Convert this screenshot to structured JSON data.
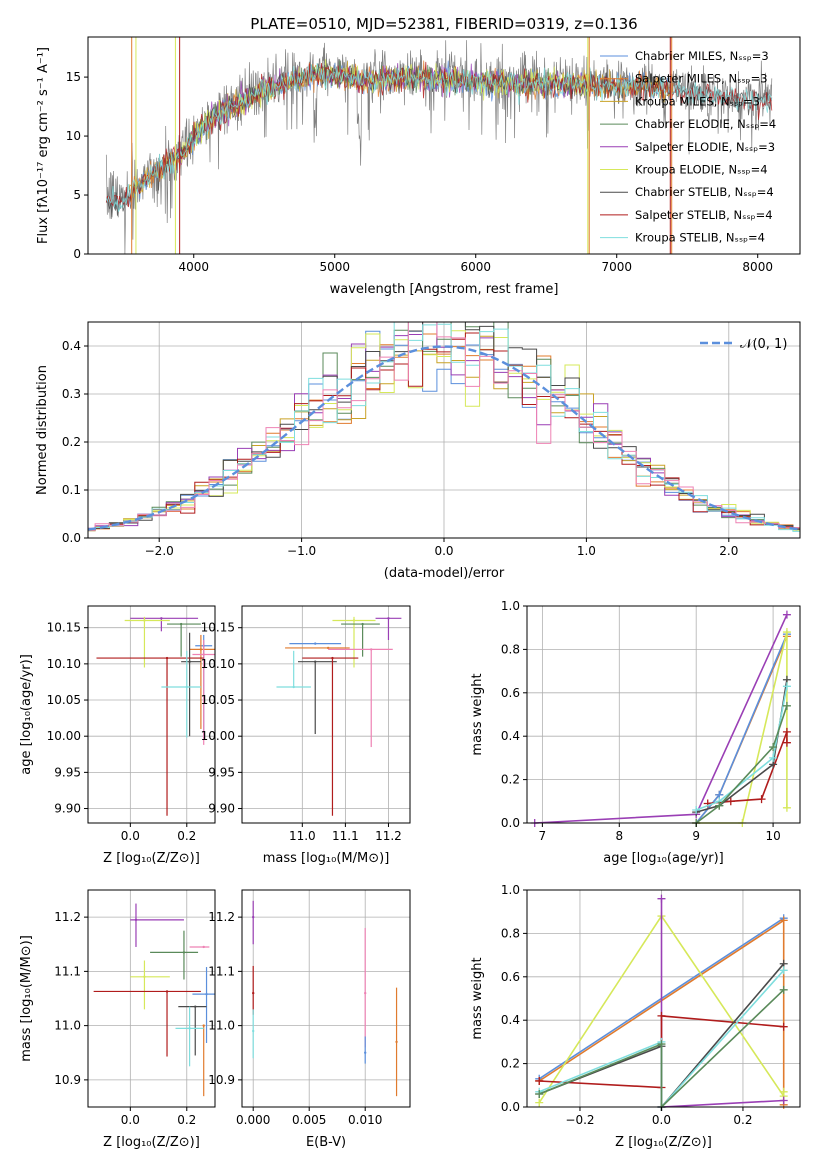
{
  "colors": {
    "chabrier_miles": "#5b8fdc",
    "salpeter_miles": "#e07b2e",
    "kroupa_miles": "#c9a227",
    "chabrier_elodie": "#5a8a5a",
    "salpeter_elodie": "#9a3fb5",
    "kroupa_elodie": "#d6e85a",
    "chabrier_stelib": "#4a4a4a",
    "salpeter_stelib": "#b01c1c",
    "kroupa_stelib": "#7fdede",
    "gray": "#808080",
    "pink": "#ee82b4",
    "normal": "#5b8fdc"
  },
  "chart_data": [
    {
      "type": "line",
      "panel": "spectrum",
      "title": "PLATE=0510, MJD=52381, FIBERID=0319, z=0.136",
      "xlabel": "wavelength [Angstrom, rest frame]",
      "ylabel": "Flux [fλ10⁻¹⁷ erg cm⁻² s⁻¹ A⁻¹]",
      "xlim": [
        3250,
        8300
      ],
      "ylim": [
        0,
        18.4
      ],
      "xticks": [
        4000,
        5000,
        6000,
        7000,
        8000
      ],
      "yticks": [
        0,
        5,
        10,
        15
      ],
      "legend_position": "top-right",
      "legend": [
        {
          "name": "Chabrier MILES, Nₛₛₚ=3",
          "color_key": "chabrier_miles"
        },
        {
          "name": "Salpeter MILES, Nₛₛₚ=3",
          "color_key": "salpeter_miles"
        },
        {
          "name": "Kroupa MILES, Nₛₛₚ=3",
          "color_key": "kroupa_miles"
        },
        {
          "name": "Chabrier ELODIE, Nₛₛₚ=4",
          "color_key": "chabrier_elodie"
        },
        {
          "name": "Salpeter ELODIE, Nₛₛₚ=3",
          "color_key": "salpeter_elodie"
        },
        {
          "name": "Kroupa ELODIE, Nₛₛₚ=4",
          "color_key": "kroupa_elodie"
        },
        {
          "name": "Chabrier STELIB, Nₛₛₚ=4",
          "color_key": "chabrier_stelib"
        },
        {
          "name": "Salpeter STELIB, Nₛₛₚ=4",
          "color_key": "salpeter_stelib"
        },
        {
          "name": "Kroupa STELIB, Nₛₛₚ=4",
          "color_key": "kroupa_stelib"
        }
      ],
      "continuum": {
        "x": [
          3380,
          3500,
          3600,
          3700,
          3800,
          3900,
          4000,
          4100,
          4200,
          4300,
          4400,
          4500,
          4600,
          4700,
          4800,
          4900,
          5000,
          5200,
          5400,
          5600,
          5800,
          6000,
          6200,
          6400,
          6600,
          6800,
          7000,
          7200,
          7400,
          7600,
          7800,
          8000,
          8100
        ],
        "y": [
          4.8,
          4.8,
          6.0,
          7.0,
          7.8,
          8.5,
          10.2,
          11.5,
          12.5,
          13.0,
          13.5,
          14.2,
          14.6,
          15.0,
          15.2,
          15.6,
          15.4,
          15.0,
          15.2,
          15.3,
          15.1,
          14.9,
          14.8,
          14.7,
          14.8,
          14.6,
          14.5,
          14.6,
          14.2,
          13.8,
          13.5,
          13.3,
          13.3
        ]
      },
      "vertical_lines": [
        {
          "x": 3560,
          "color_key": "salpeter_miles"
        },
        {
          "x": 3590,
          "color_key": "kroupa_elodie"
        },
        {
          "x": 3870,
          "color_key": "kroupa_elodie"
        },
        {
          "x": 3900,
          "color_key": "salpeter_stelib"
        },
        {
          "x": 6795,
          "color_key": "kroupa_elodie"
        },
        {
          "x": 6805,
          "color_key": "salpeter_miles"
        },
        {
          "x": 7380,
          "color_key": "salpeter_stelib"
        },
        {
          "x": 7390,
          "color_key": "salpeter_miles"
        }
      ]
    },
    {
      "type": "histogram",
      "panel": "residuals",
      "xlabel": "(data-model)/error",
      "ylabel": "Normed distribution",
      "xlim": [
        -2.5,
        2.5
      ],
      "ylim": [
        0,
        0.45
      ],
      "xticks": [
        -2,
        -1,
        0,
        1,
        2
      ],
      "yticks": [
        0.0,
        0.1,
        0.2,
        0.3,
        0.4
      ],
      "grid": true,
      "legend_position": "top-right",
      "legend": [
        {
          "name": "𝒩(0, 1)",
          "color_key": "normal"
        }
      ],
      "bin_width": 0.1
    },
    {
      "type": "errorbar",
      "panel": "age-vs-Z",
      "xlabel": "Z [log₁₀(Z/Z⊙)]",
      "ylabel": "age  [log₁₀(age/yr)]",
      "xlim": [
        -0.15,
        0.3
      ],
      "ylim": [
        9.88,
        10.18
      ],
      "xticks": [
        0.0,
        0.2
      ],
      "yticks": [
        9.9,
        9.95,
        10.0,
        10.05,
        10.1,
        10.15
      ],
      "points": [
        {
          "color_key": "salpeter_elodie",
          "x": 0.11,
          "xerr": [
            0.11,
            0.13
          ],
          "y": 10.163,
          "yerr": [
            0.018,
            0.0
          ]
        },
        {
          "color_key": "kroupa_elodie",
          "x": 0.05,
          "xerr": [
            0.07,
            0.09
          ],
          "y": 10.16,
          "yerr": [
            0.065,
            0.005
          ]
        },
        {
          "color_key": "chabrier_elodie",
          "x": 0.18,
          "xerr": [
            0.05,
            0.07
          ],
          "y": 10.155,
          "yerr": [
            0.045,
            0.0
          ]
        },
        {
          "color_key": "chabrier_miles",
          "x": 0.26,
          "xerr": [
            0.03,
            0.03
          ],
          "y": 10.125,
          "yerr": [
            0.13,
            0.015
          ]
        },
        {
          "color_key": "salpeter_miles",
          "x": 0.25,
          "xerr": [
            0.04,
            0.05
          ],
          "y": 10.12,
          "yerr": [
            0.11,
            0.02
          ]
        },
        {
          "color_key": "pink",
          "x": 0.26,
          "xerr": [
            0.04,
            0.04
          ],
          "y": 10.113,
          "yerr": [
            0.125,
            0.02
          ]
        },
        {
          "color_key": "chabrier_stelib",
          "x": 0.21,
          "xerr": [
            0.03,
            0.04
          ],
          "y": 10.103,
          "yerr": [
            0.103,
            0.04
          ]
        },
        {
          "color_key": "salpeter_stelib",
          "x": 0.13,
          "xerr": [
            0.25,
            0.13
          ],
          "y": 10.108,
          "yerr": [
            0.218,
            0.0
          ]
        },
        {
          "color_key": "kroupa_stelib",
          "x": 0.2,
          "xerr": [
            0.09,
            0.05
          ],
          "y": 10.068,
          "yerr": [
            0.07,
            0.05
          ]
        }
      ]
    },
    {
      "type": "errorbar",
      "panel": "age-vs-mass",
      "xlabel": "mass [log₁₀(M/M⊙)]",
      "ylabel": "",
      "xlim": [
        10.86,
        11.25
      ],
      "ylim": [
        9.88,
        10.18
      ],
      "xticks": [
        11.0,
        11.1,
        11.2
      ],
      "yticks": [
        9.9,
        9.95,
        10.0,
        10.05,
        10.1,
        10.15
      ],
      "points": [
        {
          "color_key": "salpeter_elodie",
          "x": 11.2,
          "xerr": [
            0.03,
            0.03
          ],
          "y": 10.163,
          "yerr": [
            0.03,
            0.0
          ]
        },
        {
          "color_key": "kroupa_elodie",
          "x": 11.12,
          "xerr": [
            0.05,
            0.05
          ],
          "y": 10.16,
          "yerr": [
            0.065,
            0.005
          ]
        },
        {
          "color_key": "chabrier_elodie",
          "x": 11.14,
          "xerr": [
            0.05,
            0.04
          ],
          "y": 10.155,
          "yerr": [
            0.045,
            0.0
          ]
        },
        {
          "color_key": "chabrier_miles",
          "x": 11.03,
          "xerr": [
            0.06,
            0.06
          ],
          "y": 10.128,
          "yerr": [
            0.0,
            0.0
          ]
        },
        {
          "color_key": "salpeter_miles",
          "x": 11.06,
          "xerr": [
            0.1,
            0.05
          ],
          "y": 10.122,
          "yerr": [
            0.0,
            0.0
          ]
        },
        {
          "color_key": "pink",
          "x": 11.16,
          "xerr": [
            0.1,
            0.05
          ],
          "y": 10.12,
          "yerr": [
            0.135,
            0.0
          ]
        },
        {
          "color_key": "chabrier_stelib",
          "x": 11.03,
          "xerr": [
            0.04,
            0.05
          ],
          "y": 10.103,
          "yerr": [
            0.1,
            0.0
          ]
        },
        {
          "color_key": "salpeter_stelib",
          "x": 11.07,
          "xerr": [
            0.07,
            0.06
          ],
          "y": 10.108,
          "yerr": [
            0.218,
            0.0
          ]
        },
        {
          "color_key": "kroupa_stelib",
          "x": 10.98,
          "xerr": [
            0.04,
            0.04
          ],
          "y": 10.068,
          "yerr": [
            0.0,
            0.05
          ]
        }
      ]
    },
    {
      "type": "line",
      "panel": "mass-weight-vs-age",
      "xlabel": "age  [log₁₀(age/yr)]",
      "ylabel": "mass weight",
      "xlim": [
        6.8,
        10.35
      ],
      "ylim": [
        0,
        1.0
      ],
      "xticks": [
        7,
        8,
        9,
        10
      ],
      "yticks": [
        0.0,
        0.2,
        0.4,
        0.6,
        0.8,
        1.0
      ],
      "grid": true,
      "series": [
        {
          "color_key": "salpeter_elodie",
          "x": [
            6.9,
            9.0,
            10.18
          ],
          "y": [
            0.0,
            0.04,
            0.96
          ]
        },
        {
          "color_key": "salpeter_miles",
          "x": [
            9.0,
            9.3,
            10.18
          ],
          "y": [
            0.0,
            0.13,
            0.86
          ]
        },
        {
          "color_key": "chabrier_miles",
          "x": [
            9.0,
            9.3,
            10.18
          ],
          "y": [
            0.0,
            0.13,
            0.87
          ]
        },
        {
          "color_key": "kroupa_elodie",
          "x": [
            9.0,
            9.6,
            10.18,
            10.18
          ],
          "y": [
            0.0,
            0.0,
            0.88,
            0.07
          ]
        },
        {
          "color_key": "salpeter_stelib",
          "x": [
            9.15,
            9.45,
            9.85,
            10.18,
            10.18
          ],
          "y": [
            0.09,
            0.1,
            0.11,
            0.42,
            0.37
          ]
        },
        {
          "color_key": "chabrier_stelib",
          "x": [
            9.0,
            9.3,
            10.0,
            10.18
          ],
          "y": [
            0.05,
            0.08,
            0.27,
            0.66
          ]
        },
        {
          "color_key": "kroupa_stelib",
          "x": [
            9.0,
            9.3,
            10.0,
            10.18
          ],
          "y": [
            0.06,
            0.1,
            0.3,
            0.63
          ]
        },
        {
          "color_key": "chabrier_elodie",
          "x": [
            9.0,
            9.3,
            10.0,
            10.18
          ],
          "y": [
            0.0,
            0.08,
            0.35,
            0.54
          ]
        }
      ]
    },
    {
      "type": "errorbar",
      "panel": "mass-vs-Z",
      "xlabel": "Z [log₁₀(Z/Z⊙)]",
      "ylabel": "mass [log₁₀(M/M⊙)]",
      "xlim": [
        -0.15,
        0.3
      ],
      "ylim": [
        10.85,
        11.25
      ],
      "xticks": [
        0.0,
        0.2
      ],
      "yticks": [
        10.9,
        11.0,
        11.1,
        11.2
      ],
      "points": [
        {
          "color_key": "salpeter_elodie",
          "x": 0.02,
          "xerr": [
            0.02,
            0.17
          ],
          "y": 11.195,
          "yerr": [
            0.05,
            0.03
          ]
        },
        {
          "color_key": "chabrier_elodie",
          "x": 0.19,
          "xerr": [
            0.12,
            0.05
          ],
          "y": 11.135,
          "yerr": [
            0.05,
            0.04
          ]
        },
        {
          "color_key": "pink",
          "x": 0.26,
          "xerr": [
            0.05,
            0.02
          ],
          "y": 11.145,
          "yerr": [
            0.0,
            0.0
          ]
        },
        {
          "color_key": "kroupa_elodie",
          "x": 0.05,
          "xerr": [
            0.05,
            0.09
          ],
          "y": 11.09,
          "yerr": [
            0.06,
            0.03
          ]
        },
        {
          "color_key": "salpeter_stelib",
          "x": 0.13,
          "xerr": [
            0.26,
            0.12
          ],
          "y": 11.063,
          "yerr": [
            0.12,
            0.0
          ]
        },
        {
          "color_key": "chabrier_miles",
          "x": 0.27,
          "xerr": [
            0.05,
            0.03
          ],
          "y": 11.058,
          "yerr": [
            0.09,
            0.05
          ]
        },
        {
          "color_key": "chabrier_stelib",
          "x": 0.23,
          "xerr": [
            0.06,
            0.04
          ],
          "y": 11.035,
          "yerr": [
            0.09,
            0.0
          ]
        },
        {
          "color_key": "salpeter_miles",
          "x": 0.26,
          "xerr": [
            0.0,
            0.0
          ],
          "y": 11.0,
          "yerr": [
            0.13,
            0.0
          ]
        },
        {
          "color_key": "kroupa_stelib",
          "x": 0.21,
          "xerr": [
            0.05,
            0.05
          ],
          "y": 10.995,
          "yerr": [
            0.07,
            0.04
          ]
        }
      ]
    },
    {
      "type": "errorbar",
      "panel": "mass-vs-EBV",
      "xlabel": "E(B-V)",
      "ylabel": "",
      "xlim": [
        -0.001,
        0.014
      ],
      "ylim": [
        10.85,
        11.25
      ],
      "xticks": [
        0.0,
        0.005,
        0.01
      ],
      "yticks": [
        10.9,
        11.0,
        11.1,
        11.2
      ],
      "points": [
        {
          "color_key": "salpeter_elodie",
          "x": 0.0,
          "xerr": [
            0.0,
            0.0
          ],
          "y": 11.2,
          "yerr": [
            0.05,
            0.03
          ]
        },
        {
          "color_key": "salpeter_stelib",
          "x": 0.0,
          "xerr": [
            0.0,
            0.0
          ],
          "y": 11.06,
          "yerr": [
            0.04,
            0.05
          ]
        },
        {
          "color_key": "kroupa_stelib",
          "x": 0.0,
          "xerr": [
            0.0,
            0.0
          ],
          "y": 10.99,
          "yerr": [
            0.05,
            0.04
          ]
        },
        {
          "color_key": "pink",
          "x": 0.01,
          "xerr": [
            0.0,
            0.0
          ],
          "y": 11.06,
          "yerr": [
            0.1,
            0.12
          ]
        },
        {
          "color_key": "chabrier_miles",
          "x": 0.01,
          "xerr": [
            0.0,
            0.0
          ],
          "y": 10.95,
          "yerr": [
            0.02,
            0.03
          ]
        },
        {
          "color_key": "salpeter_miles",
          "x": 0.0128,
          "xerr": [
            0.0,
            0.0
          ],
          "y": 10.97,
          "yerr": [
            0.1,
            0.1
          ]
        }
      ]
    },
    {
      "type": "line",
      "panel": "mass-weight-vs-Z",
      "xlabel": "Z [log₁₀(Z/Z⊙)]",
      "ylabel": "mass weight",
      "xlim": [
        -0.33,
        0.34
      ],
      "ylim": [
        0,
        1.0
      ],
      "xticks": [
        -0.2,
        0.0,
        0.2
      ],
      "yticks": [
        0.0,
        0.2,
        0.4,
        0.6,
        0.8,
        1.0
      ],
      "grid": true,
      "series": [
        {
          "color_key": "chabrier_miles",
          "x": [
            -0.3,
            0.3
          ],
          "y": [
            0.13,
            0.87
          ]
        },
        {
          "color_key": "salpeter_miles",
          "x": [
            -0.3,
            0.3,
            0.3
          ],
          "y": [
            0.12,
            0.86,
            0.01
          ]
        },
        {
          "color_key": "kroupa_elodie",
          "x": [
            -0.3,
            0.0,
            0.3,
            0.3
          ],
          "y": [
            0.02,
            0.88,
            0.05,
            0.07
          ]
        },
        {
          "color_key": "salpeter_elodie",
          "x": [
            0.0,
            0.0,
            0.0,
            0.3
          ],
          "y": [
            0.96,
            0.0,
            0.0,
            0.03
          ]
        },
        {
          "color_key": "salpeter_stelib",
          "x": [
            -0.3,
            0.0,
            0.0,
            0.3
          ],
          "y": [
            0.12,
            0.09,
            0.42,
            0.37
          ]
        },
        {
          "color_key": "chabrier_stelib",
          "x": [
            -0.3,
            0.0,
            0.0,
            0.3
          ],
          "y": [
            0.06,
            0.28,
            0.0,
            0.66
          ]
        },
        {
          "color_key": "kroupa_stelib",
          "x": [
            -0.3,
            0.0,
            0.0,
            0.3
          ],
          "y": [
            0.07,
            0.3,
            0.0,
            0.63
          ]
        },
        {
          "color_key": "chabrier_elodie",
          "x": [
            -0.3,
            0.0,
            0.0,
            0.3
          ],
          "y": [
            0.06,
            0.29,
            0.0,
            0.54
          ]
        }
      ]
    }
  ]
}
